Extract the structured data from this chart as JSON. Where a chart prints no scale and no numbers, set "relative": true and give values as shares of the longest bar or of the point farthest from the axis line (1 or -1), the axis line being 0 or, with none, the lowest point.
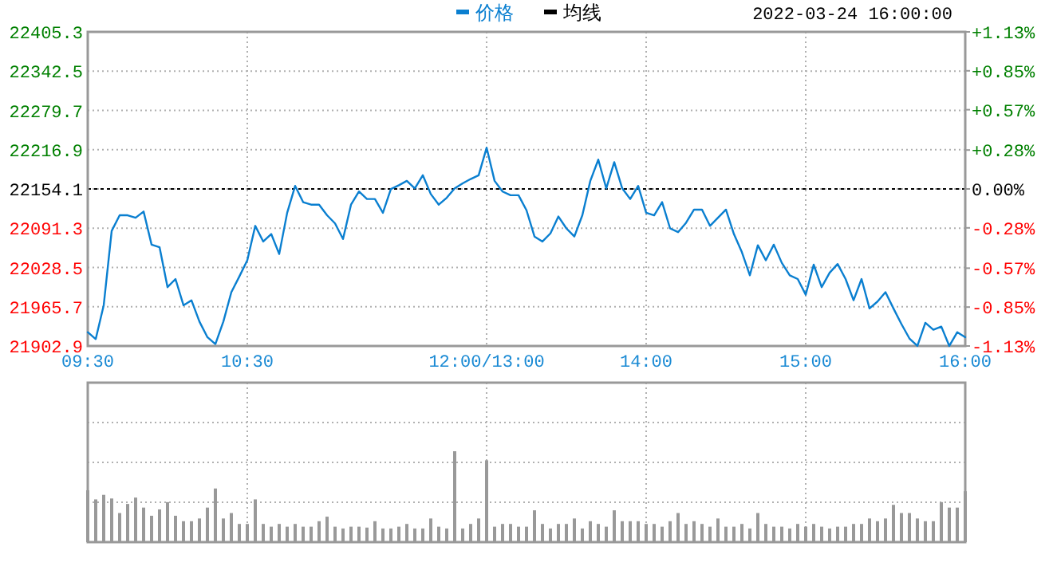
{
  "chart_data": [
    {
      "type": "line",
      "subtitle": "2022-03-24 16:00:00",
      "grid": true,
      "legend": "top",
      "categories": [
        "09:30",
        null,
        null,
        null,
        null,
        null,
        null,
        null,
        null,
        null,
        null,
        null,
        null,
        null,
        null,
        null,
        null,
        null,
        null,
        null,
        "10:30",
        null,
        null,
        null,
        null,
        null,
        null,
        null,
        null,
        null,
        null,
        null,
        null,
        null,
        null,
        null,
        null,
        null,
        null,
        null,
        null,
        null,
        null,
        null,
        null,
        null,
        null,
        null,
        null,
        null,
        "12:00/13:00",
        null,
        null,
        null,
        null,
        null,
        null,
        null,
        null,
        null,
        null,
        null,
        null,
        null,
        null,
        null,
        null,
        null,
        null,
        null,
        "14:00",
        null,
        null,
        null,
        null,
        null,
        null,
        null,
        null,
        null,
        null,
        null,
        null,
        null,
        null,
        null,
        null,
        null,
        null,
        null,
        "15:00",
        null,
        null,
        null,
        null,
        null,
        null,
        null,
        null,
        null,
        null,
        null,
        null,
        null,
        null,
        null,
        null,
        null,
        null,
        null,
        "16:00"
      ],
      "ylim": [
        21902.9,
        22405.3
      ],
      "yticks": [
        21902.9,
        21965.7,
        22028.5,
        22091.3,
        22154.1,
        22216.9,
        22279.7,
        22342.5,
        22405.3
      ],
      "y2lim": [
        -1.13,
        1.13
      ],
      "y2ticks": [
        {
          "value": -1.13,
          "label": "-1.13%"
        },
        {
          "value": -0.85,
          "label": "-0.85%"
        },
        {
          "value": -0.57,
          "label": "-0.57%"
        },
        {
          "value": -0.28,
          "label": "-0.28%"
        },
        {
          "value": 0,
          "label": "0.00%"
        },
        {
          "value": 0.28,
          "label": "+0.28%"
        },
        {
          "value": 0.57,
          "label": "+0.57%"
        },
        {
          "value": 0.85,
          "label": "+0.85%"
        },
        {
          "value": 1.13,
          "label": "+1.13%"
        }
      ],
      "ref_lines": [
        {
          "axis": "y",
          "value": 22154.1,
          "color": "#000000",
          "line_style": "dashed"
        }
      ],
      "series": [
        {
          "name": "价格",
          "color": "#0a7fd0",
          "values": [
            21925,
            21914,
            21968,
            22087,
            22112,
            22112,
            22108,
            22118,
            22065,
            22061,
            21997,
            22010,
            21968,
            21976,
            21942,
            21917,
            21906,
            21942,
            21989,
            22014,
            22040,
            22095,
            22070,
            22082,
            22050,
            22116,
            22159,
            22133,
            22129,
            22129,
            22112,
            22099,
            22074,
            22129,
            22150,
            22138,
            22138,
            22116,
            22154,
            22160,
            22167,
            22155,
            22176,
            22146,
            22129,
            22140,
            22155,
            22163,
            22170,
            22176,
            22220,
            22167,
            22150,
            22144,
            22144,
            22120,
            22078,
            22070,
            22083,
            22110,
            22091,
            22078,
            22112,
            22167,
            22201,
            22155,
            22197,
            22155,
            22138,
            22159,
            22116,
            22112,
            22133,
            22091,
            22085,
            22100,
            22121,
            22121,
            22095,
            22108,
            22121,
            22082,
            22053,
            22016,
            22064,
            22040,
            22065,
            22036,
            22016,
            22010,
            21985,
            22033,
            21997,
            22020,
            22034,
            22010,
            21976,
            22010,
            21963,
            21974,
            21989,
            21963,
            21938,
            21915,
            21903,
            21940,
            21929,
            21934,
            21903,
            21925,
            21917
          ]
        },
        {
          "name": "均线",
          "color": "#000000",
          "values": [
            null,
            null,
            null,
            null,
            null,
            null,
            null,
            null,
            null,
            null,
            null,
            null,
            null,
            null,
            null,
            null,
            null,
            null,
            null,
            null,
            null,
            null,
            null,
            null,
            null,
            null,
            null,
            null,
            null,
            null,
            null,
            null,
            null,
            null,
            null,
            null,
            null,
            null,
            null,
            null,
            null,
            null,
            null,
            null,
            null,
            null,
            null,
            null,
            null,
            null,
            null,
            null,
            null,
            null,
            null,
            null,
            null,
            null,
            null,
            null,
            null,
            null,
            null,
            null,
            null,
            null,
            null,
            null,
            null,
            null,
            null,
            null,
            null,
            null,
            null,
            null,
            null,
            null,
            null,
            null,
            null,
            null,
            null,
            null,
            null,
            null,
            null,
            null,
            null,
            null,
            null,
            null,
            null,
            null,
            null,
            null,
            null,
            null,
            null,
            null,
            null,
            null,
            null,
            null,
            null,
            null,
            null,
            null,
            null,
            null,
            null
          ]
        }
      ]
    },
    {
      "type": "bar",
      "relative": true,
      "grid": true,
      "color": "#999999",
      "categories": [
        null,
        null,
        null,
        null,
        null,
        null,
        null,
        null,
        null,
        null,
        null,
        null,
        null,
        null,
        null,
        null,
        null,
        null,
        null,
        null,
        null,
        null,
        null,
        null,
        null,
        null,
        null,
        null,
        null,
        null,
        null,
        null,
        null,
        null,
        null,
        null,
        null,
        null,
        null,
        null,
        null,
        null,
        null,
        null,
        null,
        null,
        null,
        null,
        null,
        null,
        null,
        null,
        null,
        null,
        null,
        null,
        null,
        null,
        null,
        null,
        null,
        null,
        null,
        null,
        null,
        null,
        null,
        null,
        null,
        null,
        null,
        null,
        null,
        null,
        null,
        null,
        null,
        null,
        null,
        null,
        null,
        null,
        null,
        null,
        null,
        null,
        null,
        null,
        null,
        null,
        null,
        null,
        null,
        null,
        null,
        null,
        null,
        null,
        null,
        null,
        null,
        null,
        null,
        null,
        null,
        null,
        null,
        null,
        null,
        null,
        null
      ],
      "values": [
        0.57,
        0.47,
        0.52,
        0.48,
        0.32,
        0.42,
        0.49,
        0.38,
        0.29,
        0.36,
        0.44,
        0.29,
        0.23,
        0.23,
        0.26,
        0.38,
        0.59,
        0.26,
        0.32,
        0.2,
        0.2,
        0.47,
        0.2,
        0.17,
        0.2,
        0.17,
        0.2,
        0.17,
        0.17,
        0.23,
        0.28,
        0.17,
        0.15,
        0.17,
        0.17,
        0.16,
        0.23,
        0.15,
        0.15,
        0.17,
        0.2,
        0.15,
        0.15,
        0.26,
        0.17,
        0.15,
        1.0,
        0.15,
        0.2,
        0.26,
        0.9,
        0.17,
        0.2,
        0.2,
        0.17,
        0.17,
        0.35,
        0.2,
        0.15,
        0.2,
        0.2,
        0.26,
        0.15,
        0.23,
        0.2,
        0.17,
        0.35,
        0.23,
        0.23,
        0.23,
        0.2,
        0.2,
        0.17,
        0.23,
        0.32,
        0.2,
        0.23,
        0.2,
        0.17,
        0.26,
        0.17,
        0.17,
        0.2,
        0.15,
        0.32,
        0.2,
        0.17,
        0.17,
        0.15,
        0.2,
        0.17,
        0.2,
        0.17,
        0.15,
        0.17,
        0.17,
        0.2,
        0.2,
        0.26,
        0.23,
        0.26,
        0.41,
        0.32,
        0.32,
        0.26,
        0.23,
        0.23,
        0.44,
        0.38,
        0.38,
        0.56
      ]
    }
  ]
}
